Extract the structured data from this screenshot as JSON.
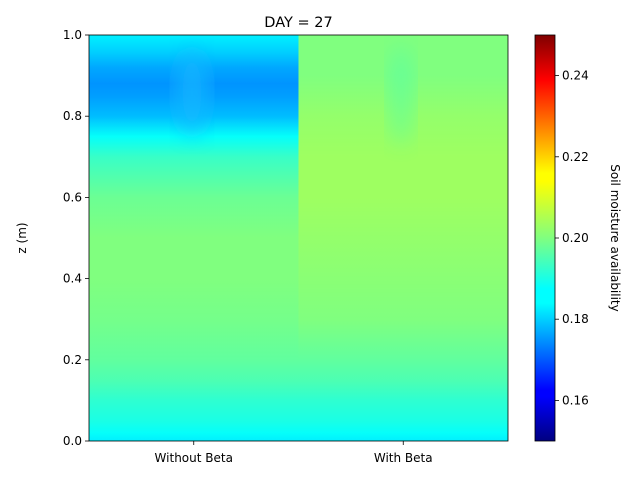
{
  "chart_data": {
    "type": "heatmap",
    "title": "DAY = 27",
    "xlabel": "",
    "ylabel": "z (m)",
    "categories": [
      "Without Beta",
      "With Beta"
    ],
    "ylim": [
      0.0,
      1.0
    ],
    "yticks": [
      "0.0",
      "0.2",
      "0.4",
      "0.6",
      "0.8",
      "1.0"
    ],
    "colormap": "jet",
    "colorbar": {
      "label": "Soil moisture availability",
      "range": [
        0.15,
        0.25
      ],
      "ticks": [
        "0.16",
        "0.18",
        "0.20",
        "0.22",
        "0.24"
      ],
      "tick_values": [
        0.16,
        0.18,
        0.2,
        0.22,
        0.24
      ]
    },
    "profiles": [
      {
        "name": "Without Beta",
        "z": [
          0.0,
          0.02,
          0.05,
          0.1,
          0.15,
          0.2,
          0.3,
          0.4,
          0.5,
          0.6,
          0.7,
          0.75,
          0.8,
          0.85,
          0.88,
          0.92,
          0.96,
          1.0
        ],
        "moisture": [
          0.186,
          0.188,
          0.19,
          0.192,
          0.195,
          0.197,
          0.199,
          0.2,
          0.2,
          0.198,
          0.193,
          0.188,
          0.181,
          0.178,
          0.177,
          0.179,
          0.183,
          0.186
        ]
      },
      {
        "name": "With Beta",
        "z": [
          0.0,
          0.02,
          0.05,
          0.1,
          0.15,
          0.2,
          0.3,
          0.4,
          0.5,
          0.6,
          0.7,
          0.8,
          0.9,
          1.0
        ],
        "moisture": [
          0.186,
          0.188,
          0.19,
          0.192,
          0.195,
          0.197,
          0.2,
          0.201,
          0.202,
          0.203,
          0.203,
          0.202,
          0.2,
          0.2
        ]
      }
    ],
    "background_moisture": 0.202
  }
}
